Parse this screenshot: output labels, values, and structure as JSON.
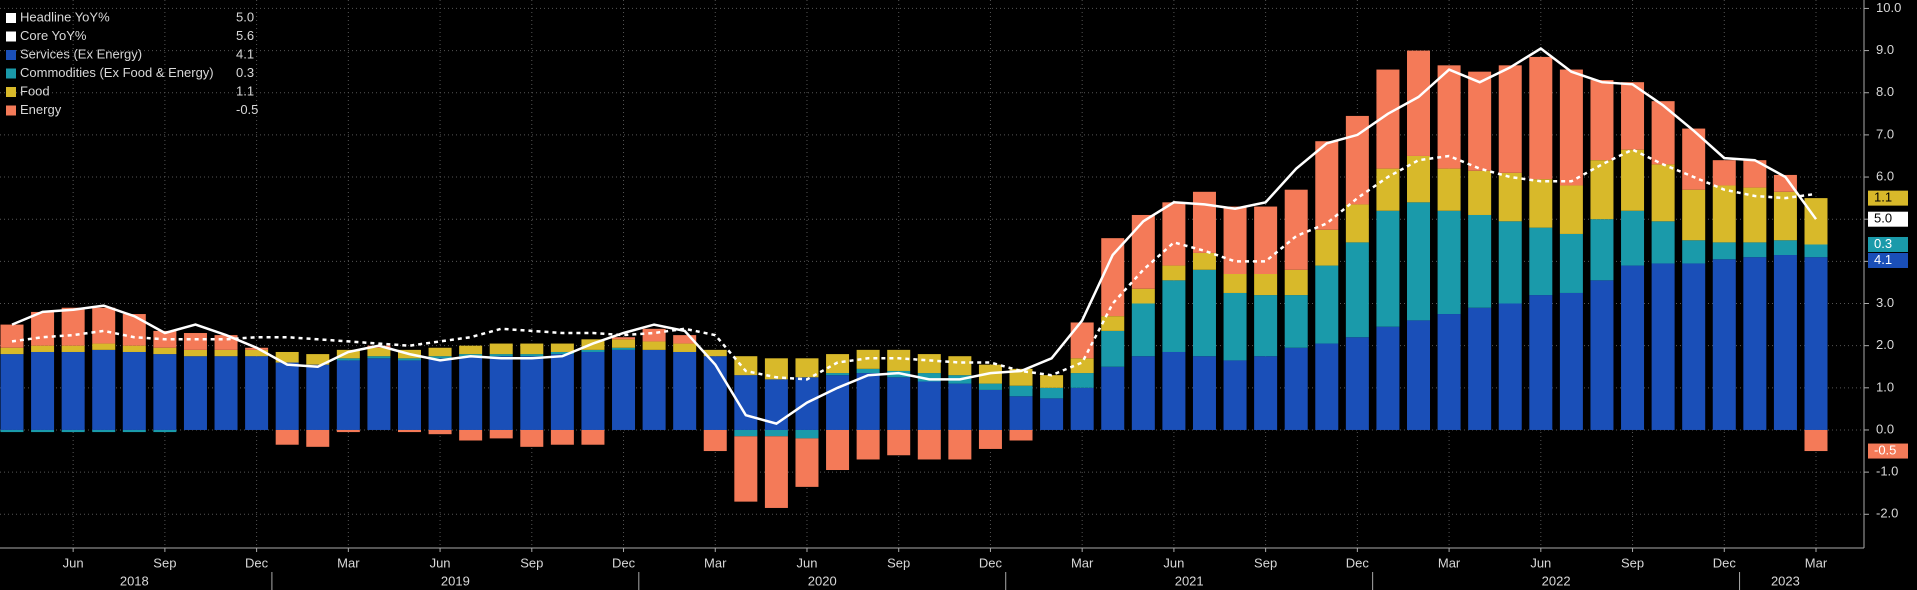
{
  "chart_data": {
    "type": "bar",
    "stacked": true,
    "background": "#000000",
    "grid": true,
    "legend_position": "top-left",
    "categories": [
      null,
      null,
      "Jun",
      null,
      null,
      "Sep",
      null,
      null,
      "Dec",
      null,
      null,
      "Mar",
      null,
      null,
      "Jun",
      null,
      null,
      "Sep",
      null,
      null,
      "Dec",
      null,
      null,
      "Mar",
      null,
      null,
      "Jun",
      null,
      null,
      "Sep",
      null,
      null,
      "Dec",
      null,
      null,
      "Mar",
      null,
      null,
      "Jun",
      null,
      null,
      "Sep",
      null,
      null,
      "Dec",
      null,
      null,
      "Mar",
      null,
      null,
      "Jun",
      null,
      null,
      "Sep",
      null,
      null,
      "Dec",
      null,
      null,
      "Mar"
    ],
    "years": [
      "2018",
      "2019",
      "2020",
      "2021",
      "2022",
      "2023"
    ],
    "ylim": [
      -2.8,
      10.2
    ],
    "yticks": [
      {
        "value": -2,
        "label": "-2.0"
      },
      {
        "value": -1,
        "label": "-1.0"
      },
      {
        "value": 0,
        "label": "0.0"
      },
      {
        "value": 1,
        "label": "1.0"
      },
      {
        "value": 2,
        "label": "2.0"
      },
      {
        "value": 3,
        "label": "3.0"
      },
      {
        "value": 4,
        "label": "4.0"
      },
      {
        "value": 5,
        "label": "5.0"
      },
      {
        "value": 6,
        "label": "6.0"
      },
      {
        "value": 7,
        "label": "7.0"
      },
      {
        "value": 8,
        "label": "8.0"
      },
      {
        "value": 9,
        "label": "9.0"
      },
      {
        "value": 10,
        "label": "10.0"
      }
    ],
    "series": [
      {
        "name": "Headline YoY%",
        "type": "line",
        "dashed": false,
        "color": "#ffffff",
        "values": [
          2.5,
          2.8,
          2.85,
          2.95,
          2.7,
          2.3,
          2.5,
          2.25,
          1.95,
          1.55,
          1.5,
          1.85,
          2.0,
          1.8,
          1.65,
          1.75,
          1.7,
          1.7,
          1.75,
          2.05,
          2.3,
          2.5,
          2.35,
          1.55,
          0.35,
          0.15,
          0.65,
          1.0,
          1.3,
          1.35,
          1.2,
          1.2,
          1.35,
          1.4,
          1.7,
          2.6,
          4.15,
          4.95,
          5.4,
          5.35,
          5.25,
          5.4,
          6.2,
          6.8,
          7.0,
          7.5,
          7.9,
          8.55,
          8.25,
          8.6,
          9.05,
          8.5,
          8.25,
          8.2,
          7.7,
          7.1,
          6.45,
          6.4,
          6.0,
          5.0
        ],
        "value_labels": [
          null,
          null,
          null,
          null,
          null,
          null,
          null,
          null,
          null,
          null,
          null,
          null,
          null,
          null,
          null,
          null,
          null,
          null,
          null,
          null,
          null,
          null,
          null,
          null,
          null,
          null,
          null,
          null,
          null,
          null,
          null,
          null,
          null,
          null,
          null,
          null,
          null,
          null,
          null,
          null,
          null,
          null,
          null,
          null,
          null,
          null,
          null,
          null,
          null,
          null,
          null,
          null,
          null,
          null,
          null,
          null,
          null,
          null,
          null,
          "5.0"
        ]
      },
      {
        "name": "Core YoY%",
        "type": "line",
        "dashed": true,
        "color": "#ffffff",
        "values": [
          2.1,
          2.2,
          2.25,
          2.35,
          2.2,
          2.15,
          2.15,
          2.15,
          2.2,
          2.2,
          2.15,
          2.1,
          2.05,
          2.0,
          2.1,
          2.2,
          2.4,
          2.35,
          2.3,
          2.3,
          2.25,
          2.3,
          2.4,
          2.25,
          1.4,
          1.25,
          1.2,
          1.6,
          1.7,
          1.7,
          1.65,
          1.6,
          1.6,
          1.4,
          1.3,
          1.6,
          3.0,
          3.8,
          4.45,
          4.25,
          4.0,
          4.0,
          4.6,
          4.9,
          5.5,
          6.0,
          6.4,
          6.5,
          6.2,
          6.0,
          5.9,
          5.9,
          6.3,
          6.65,
          6.3,
          6.0,
          5.7,
          5.55,
          5.5,
          5.6
        ],
        "value_labels": [
          null,
          null,
          null,
          null,
          null,
          null,
          null,
          null,
          null,
          null,
          null,
          null,
          null,
          null,
          null,
          null,
          null,
          null,
          null,
          null,
          null,
          null,
          null,
          null,
          null,
          null,
          null,
          null,
          null,
          null,
          null,
          null,
          null,
          null,
          null,
          null,
          null,
          null,
          null,
          null,
          null,
          null,
          null,
          null,
          null,
          null,
          null,
          null,
          null,
          null,
          null,
          null,
          null,
          null,
          null,
          null,
          null,
          null,
          null,
          "5.6"
        ]
      },
      {
        "name": "Services (Ex Energy)",
        "type": "bar",
        "color": "#1a4fb8",
        "values": [
          1.8,
          1.85,
          1.85,
          1.9,
          1.85,
          1.8,
          1.75,
          1.75,
          1.75,
          1.6,
          1.55,
          1.65,
          1.7,
          1.65,
          1.7,
          1.75,
          1.75,
          1.75,
          1.8,
          1.85,
          1.9,
          1.9,
          1.85,
          1.75,
          1.3,
          1.2,
          1.25,
          1.3,
          1.35,
          1.25,
          1.15,
          1.1,
          0.95,
          0.8,
          0.75,
          1.0,
          1.5,
          1.75,
          1.85,
          1.75,
          1.65,
          1.75,
          1.95,
          2.05,
          2.2,
          2.45,
          2.6,
          2.75,
          2.9,
          3.0,
          3.2,
          3.25,
          3.55,
          3.9,
          3.95,
          3.95,
          4.05,
          4.1,
          4.15,
          4.1
        ],
        "value_labels": [
          null,
          null,
          null,
          null,
          null,
          null,
          null,
          null,
          null,
          null,
          null,
          null,
          null,
          null,
          null,
          null,
          null,
          null,
          null,
          null,
          null,
          null,
          null,
          null,
          null,
          null,
          null,
          null,
          null,
          null,
          null,
          null,
          null,
          null,
          null,
          null,
          null,
          null,
          null,
          null,
          null,
          null,
          null,
          null,
          null,
          null,
          null,
          null,
          null,
          null,
          null,
          null,
          null,
          null,
          null,
          null,
          null,
          null,
          null,
          "4.1"
        ]
      },
      {
        "name": "Commodities (Ex Food & Energy)",
        "type": "bar",
        "color": "#1a9aaa",
        "values": [
          -0.05,
          -0.05,
          -0.05,
          -0.05,
          -0.05,
          -0.05,
          0.0,
          0.0,
          0.0,
          0.0,
          0.0,
          0.05,
          0.05,
          0.05,
          0.05,
          0.05,
          0.05,
          0.05,
          0.05,
          0.05,
          0.05,
          0.0,
          0.0,
          0.0,
          -0.15,
          -0.15,
          -0.2,
          0.05,
          0.1,
          0.15,
          0.2,
          0.2,
          0.15,
          0.25,
          0.25,
          0.35,
          0.85,
          1.25,
          1.7,
          2.05,
          1.6,
          1.45,
          1.25,
          1.85,
          2.25,
          2.75,
          2.8,
          2.45,
          2.2,
          1.95,
          1.6,
          1.4,
          1.45,
          1.3,
          1.0,
          0.55,
          0.4,
          0.35,
          0.35,
          0.3
        ],
        "value_labels": [
          null,
          null,
          null,
          null,
          null,
          null,
          null,
          null,
          null,
          null,
          null,
          null,
          null,
          null,
          null,
          null,
          null,
          null,
          null,
          null,
          null,
          null,
          null,
          null,
          null,
          null,
          null,
          null,
          null,
          null,
          null,
          null,
          null,
          null,
          null,
          null,
          null,
          null,
          null,
          null,
          null,
          null,
          null,
          null,
          null,
          null,
          null,
          null,
          null,
          null,
          null,
          null,
          null,
          null,
          null,
          null,
          null,
          null,
          null,
          "0.3"
        ]
      },
      {
        "name": "Food",
        "type": "bar",
        "color": "#d8b92a",
        "values": [
          0.15,
          0.15,
          0.15,
          0.15,
          0.15,
          0.15,
          0.15,
          0.15,
          0.15,
          0.25,
          0.25,
          0.2,
          0.2,
          0.2,
          0.2,
          0.2,
          0.25,
          0.25,
          0.2,
          0.25,
          0.2,
          0.2,
          0.2,
          0.15,
          0.45,
          0.5,
          0.45,
          0.45,
          0.45,
          0.5,
          0.45,
          0.45,
          0.45,
          0.4,
          0.3,
          0.35,
          0.35,
          0.35,
          0.35,
          0.4,
          0.45,
          0.5,
          0.6,
          0.85,
          0.9,
          1.0,
          1.1,
          1.0,
          1.05,
          1.15,
          1.15,
          1.15,
          1.4,
          1.45,
          1.35,
          1.2,
          1.35,
          1.3,
          1.15,
          1.1
        ],
        "value_labels": [
          null,
          null,
          null,
          null,
          null,
          null,
          null,
          null,
          null,
          null,
          null,
          null,
          null,
          null,
          null,
          null,
          null,
          null,
          null,
          null,
          null,
          null,
          null,
          null,
          null,
          null,
          null,
          null,
          null,
          null,
          null,
          null,
          null,
          null,
          null,
          null,
          null,
          null,
          null,
          null,
          null,
          null,
          null,
          null,
          null,
          null,
          null,
          null,
          null,
          null,
          null,
          null,
          null,
          null,
          null,
          null,
          null,
          null,
          null,
          "1.1"
        ]
      },
      {
        "name": "Energy",
        "type": "bar",
        "color": "#f47a58",
        "values": [
          0.55,
          0.8,
          0.9,
          0.85,
          0.75,
          0.4,
          0.4,
          0.35,
          0.05,
          -0.35,
          -0.4,
          -0.05,
          0.05,
          -0.05,
          -0.1,
          -0.25,
          -0.2,
          -0.4,
          -0.35,
          -0.35,
          0.05,
          0.3,
          0.2,
          -0.5,
          -1.55,
          -1.7,
          -1.15,
          -0.95,
          -0.7,
          -0.6,
          -0.7,
          -0.7,
          -0.45,
          -0.25,
          0.0,
          0.85,
          1.85,
          1.75,
          1.5,
          1.45,
          1.6,
          1.6,
          1.9,
          2.1,
          2.1,
          2.35,
          2.5,
          2.45,
          2.35,
          2.55,
          2.9,
          2.75,
          1.9,
          1.6,
          1.5,
          1.45,
          0.6,
          0.65,
          0.4,
          -0.5
        ],
        "value_labels": [
          null,
          null,
          null,
          null,
          null,
          null,
          null,
          null,
          null,
          null,
          null,
          null,
          null,
          null,
          null,
          null,
          null,
          null,
          null,
          null,
          null,
          null,
          null,
          null,
          null,
          null,
          null,
          null,
          null,
          null,
          null,
          null,
          null,
          null,
          null,
          null,
          null,
          null,
          null,
          null,
          null,
          null,
          null,
          null,
          null,
          null,
          null,
          null,
          null,
          null,
          null,
          null,
          null,
          null,
          null,
          null,
          null,
          null,
          null,
          "-0.5"
        ]
      }
    ]
  }
}
